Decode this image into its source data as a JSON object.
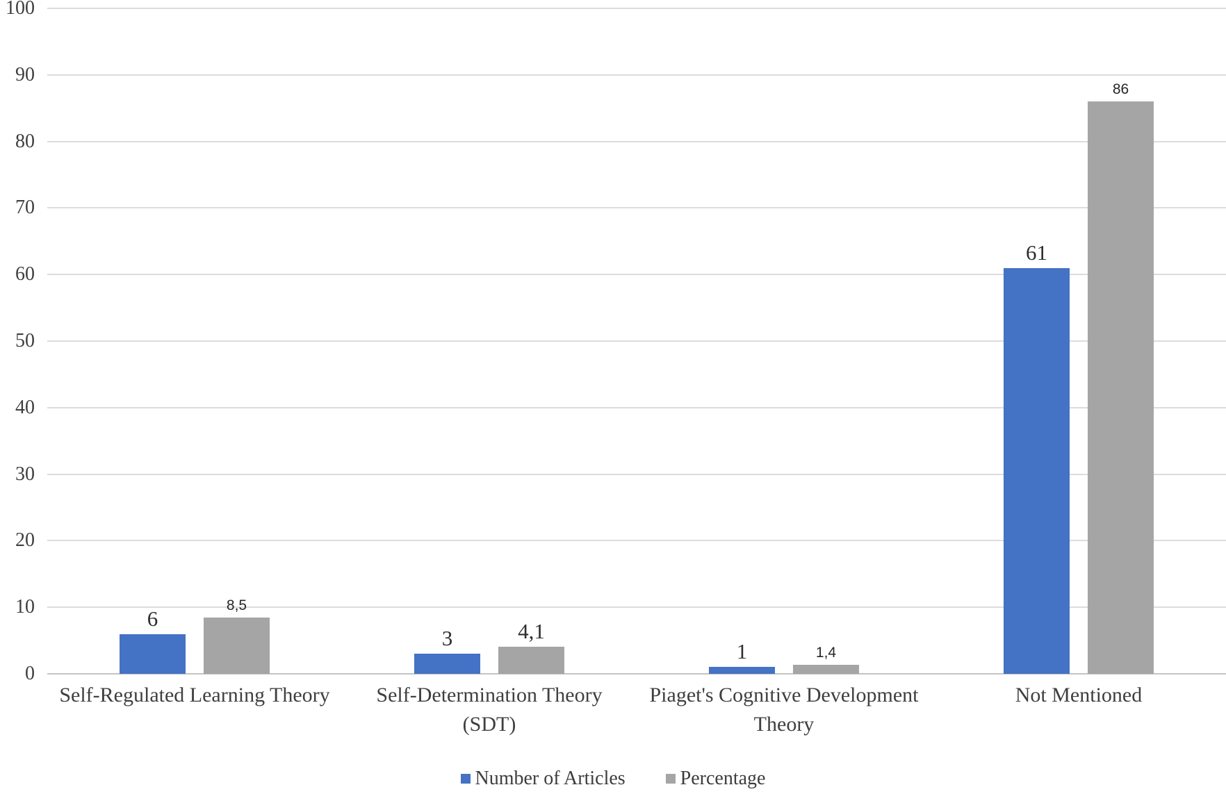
{
  "chart_data": {
    "type": "bar",
    "title": "",
    "xlabel": "",
    "ylabel": "",
    "ylim": [
      0,
      100
    ],
    "ytick_step": 10,
    "ytick_labels": [
      "0",
      "10",
      "20",
      "30",
      "40",
      "50",
      "60",
      "70",
      "80",
      "90",
      "100"
    ],
    "grid": true,
    "legend_position": "bottom",
    "categories": [
      "Self-Regulated Learning Theory",
      "Self-Determination Theory\n(SDT)",
      "Piaget's Cognitive Development\nTheory",
      "Not Mentioned"
    ],
    "series": [
      {
        "name": "Number of Articles",
        "color": "#4472C4",
        "values": [
          6,
          3,
          1,
          61
        ],
        "labels": [
          "6",
          "3",
          "1",
          "61"
        ],
        "label_styles": [
          "serif",
          "serif",
          "serif",
          "serif"
        ]
      },
      {
        "name": "Percentage",
        "color": "#A5A5A5",
        "values": [
          8.5,
          4.1,
          1.4,
          86
        ],
        "labels": [
          "8,5",
          "4,1",
          "1,4",
          "86"
        ],
        "label_styles": [
          "sans",
          "serif",
          "sans",
          "sans"
        ]
      }
    ],
    "colors": {
      "gridline": "#dcdcdc",
      "axis_line": "#c4c4c4",
      "text": "#3f3f3f"
    }
  }
}
